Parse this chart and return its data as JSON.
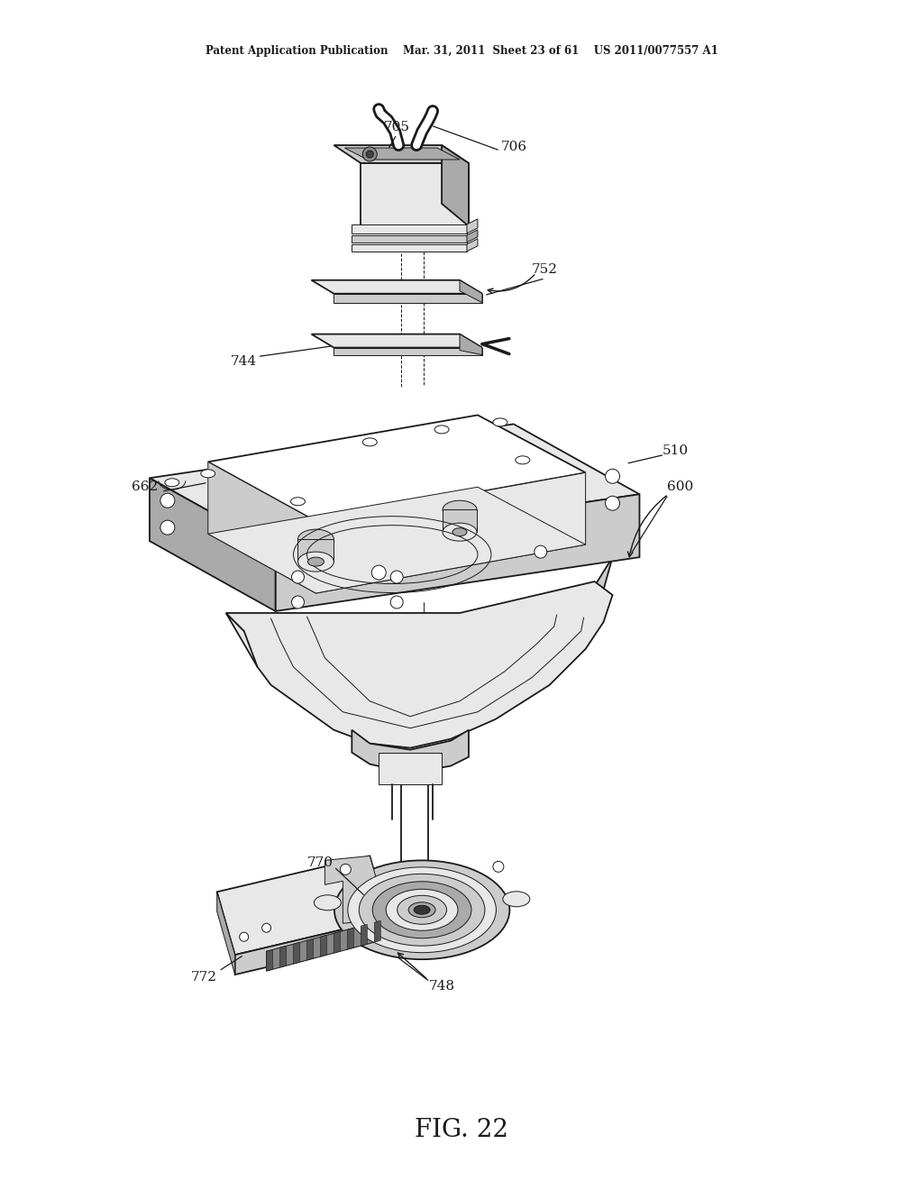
{
  "bg_color": "#ffffff",
  "lc": "#1a1a1a",
  "lw": 1.3,
  "lw_thin": 0.7,
  "lw_thick": 2.0,
  "fig_width": 10.24,
  "fig_height": 13.2,
  "header": "Patent Application Publication    Mar. 31, 2011  Sheet 23 of 61    US 2011/0077557 A1",
  "fig_label": "FIG. 22",
  "gray_light": "#e8e8e8",
  "gray_mid": "#cccccc",
  "gray_dark": "#aaaaaa",
  "gray_darker": "#888888",
  "white": "#ffffff"
}
